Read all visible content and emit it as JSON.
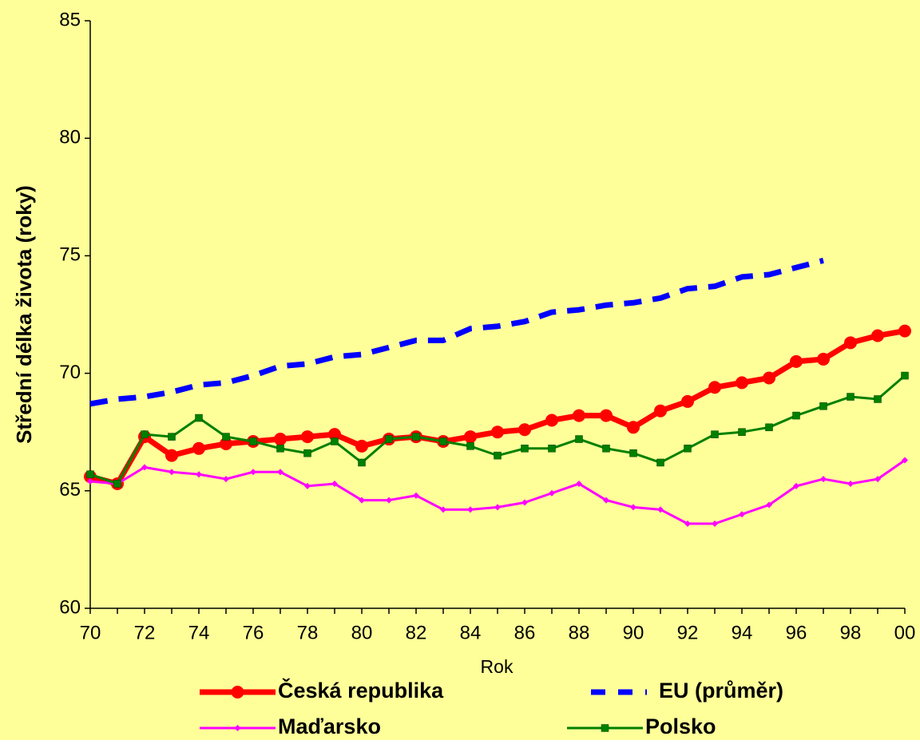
{
  "chart_data": {
    "type": "line",
    "y_label": "Střední délka života (roky)",
    "x_label": "Rok",
    "categories": [
      "70",
      null,
      "72",
      null,
      "74",
      null,
      "76",
      null,
      "78",
      null,
      "80",
      null,
      "82",
      null,
      "84",
      null,
      "86",
      null,
      "88",
      null,
      "90",
      null,
      "92",
      null,
      "94",
      null,
      "96",
      null,
      "98",
      null,
      "00"
    ],
    "ylim": [
      60,
      85
    ],
    "yticks": [
      60,
      65,
      70,
      75,
      80,
      85
    ],
    "grid": false,
    "background": "#ffff99",
    "series": [
      {
        "name": "Česká republika",
        "color": "#ff0000",
        "marker": "circle",
        "dashed": false,
        "values": [
          65.6,
          65.3,
          67.3,
          66.5,
          66.8,
          67.0,
          67.1,
          67.2,
          67.3,
          67.4,
          66.9,
          67.2,
          67.3,
          67.1,
          67.3,
          67.5,
          67.6,
          68.0,
          68.2,
          68.2,
          67.7,
          68.4,
          68.8,
          69.4,
          69.6,
          69.8,
          70.5,
          70.6,
          71.3,
          71.6,
          71.8
        ]
      },
      {
        "name": "EU (průměr)",
        "color": "#0000ff",
        "marker": "none",
        "dashed": true,
        "values": [
          68.7,
          68.9,
          69.0,
          69.2,
          69.5,
          69.6,
          69.9,
          70.3,
          70.4,
          70.7,
          70.8,
          71.1,
          71.4,
          71.4,
          71.9,
          72.0,
          72.2,
          72.6,
          72.7,
          72.9,
          73.0,
          73.2,
          73.6,
          73.7,
          74.1,
          74.2,
          74.5,
          74.8,
          null,
          null,
          null
        ]
      },
      {
        "name": "Maďarsko",
        "color": "#ff00ff",
        "marker": "diamond",
        "dashed": false,
        "values": [
          65.4,
          65.3,
          66.0,
          65.8,
          65.7,
          65.5,
          65.8,
          65.8,
          65.2,
          65.3,
          64.6,
          64.6,
          64.8,
          64.2,
          64.2,
          64.3,
          64.5,
          64.9,
          65.3,
          64.6,
          64.3,
          64.2,
          63.6,
          63.6,
          64.0,
          64.4,
          65.2,
          65.5,
          65.3,
          65.5,
          66.3
        ]
      },
      {
        "name": "Polsko",
        "color": "#008000",
        "marker": "square",
        "dashed": false,
        "values": [
          65.7,
          65.3,
          67.4,
          67.3,
          68.1,
          67.3,
          67.1,
          66.8,
          66.6,
          67.1,
          66.2,
          67.2,
          67.3,
          67.1,
          66.9,
          66.5,
          66.8,
          66.8,
          67.2,
          66.8,
          66.6,
          66.2,
          66.8,
          67.4,
          67.5,
          67.7,
          68.2,
          68.6,
          69.0,
          68.9,
          69.9
        ]
      }
    ]
  }
}
